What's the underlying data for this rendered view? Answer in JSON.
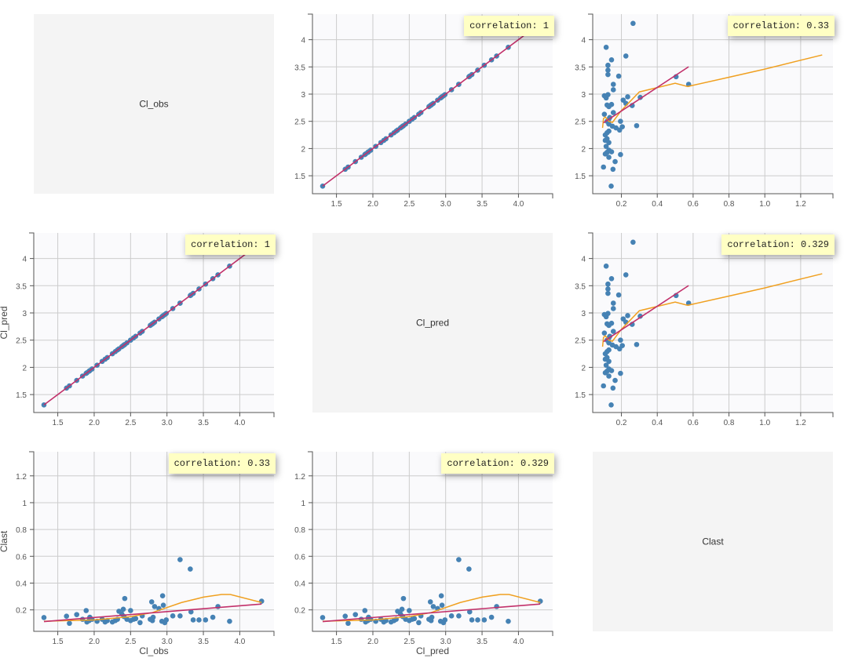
{
  "chart_data": {
    "type": "scatter",
    "layout": "scatter-matrix",
    "variables": [
      "Cl_obs",
      "Cl_pred",
      "Clast"
    ],
    "grid": true,
    "colors": {
      "points": "#4682b4",
      "regression": "#c2306a",
      "smooth": "#f0a020",
      "diagonal_bg": "#f4f4f4",
      "plot_bg": "#fafafc",
      "correlation_bg": "#ffffc4"
    },
    "axes": {
      "Cl_obs": {
        "range": [
          1.17,
          4.47
        ],
        "ticks": [
          1.5,
          2.0,
          2.5,
          3.0,
          3.5,
          4.0
        ],
        "x_tick_labels": [
          "1.5",
          "2.0",
          "2.5",
          "3.0",
          "3.5",
          "4.0"
        ],
        "y_tick_labels": [
          "1.5",
          "2",
          "2.5",
          "3",
          "3.5",
          "4"
        ]
      },
      "Cl_pred": {
        "range": [
          1.17,
          4.47
        ],
        "ticks": [
          1.5,
          2.0,
          2.5,
          3.0,
          3.5,
          4.0
        ],
        "x_tick_labels": [
          "1.5",
          "2.0",
          "2.5",
          "3.0",
          "3.5",
          "4.0"
        ],
        "y_tick_labels": [
          "1.5",
          "2",
          "2.5",
          "3",
          "3.5",
          "4"
        ]
      },
      "Clast": {
        "range": [
          0.04,
          1.38
        ],
        "ticks": [
          0.2,
          0.4,
          0.6,
          0.8,
          1.0,
          1.2
        ],
        "x_tick_labels": [
          "0.2",
          "0.4",
          "0.6",
          "0.8",
          "1.0",
          "1.2"
        ],
        "y_tick_labels": [
          "0.2",
          "0.4",
          "0.6",
          "0.8",
          "1",
          "1.2"
        ]
      }
    },
    "points": {
      "Cl_obs": [
        1.31,
        1.62,
        1.66,
        1.76,
        1.84,
        1.89,
        1.9,
        1.93,
        1.94,
        1.97,
        2.04,
        2.11,
        2.15,
        2.18,
        2.25,
        2.29,
        2.32,
        2.34,
        2.4,
        2.42,
        2.38,
        2.41,
        2.45,
        2.5,
        2.5,
        2.54,
        2.57,
        2.63,
        2.66,
        2.77,
        2.79,
        2.8,
        2.81,
        2.83,
        2.89,
        2.93,
        2.94,
        2.95,
        2.97,
        2.99,
        3.08,
        3.18,
        3.18,
        3.32,
        3.33,
        3.36,
        3.44,
        3.53,
        3.63,
        3.7,
        3.86,
        4.3
      ],
      "Cl_pred": [
        1.31,
        1.62,
        1.66,
        1.76,
        1.84,
        1.89,
        1.9,
        1.93,
        1.94,
        1.97,
        2.04,
        2.11,
        2.15,
        2.18,
        2.25,
        2.29,
        2.32,
        2.34,
        2.4,
        2.42,
        2.38,
        2.41,
        2.45,
        2.5,
        2.5,
        2.54,
        2.57,
        2.63,
        2.66,
        2.77,
        2.79,
        2.8,
        2.81,
        2.83,
        2.89,
        2.93,
        2.94,
        2.95,
        2.97,
        2.99,
        3.08,
        3.18,
        3.18,
        3.32,
        3.33,
        3.36,
        3.44,
        3.53,
        3.63,
        3.7,
        3.86,
        4.3
      ],
      "Clast": [
        0.143,
        0.153,
        0.1,
        0.165,
        0.13,
        0.195,
        0.11,
        0.12,
        0.145,
        0.13,
        0.115,
        0.13,
        0.11,
        0.12,
        0.11,
        0.12,
        0.13,
        0.19,
        0.205,
        0.285,
        0.17,
        0.15,
        0.13,
        0.195,
        0.12,
        0.13,
        0.135,
        0.105,
        0.155,
        0.13,
        0.26,
        0.12,
        0.145,
        0.225,
        0.21,
        0.115,
        0.305,
        0.235,
        0.105,
        0.125,
        0.155,
        0.155,
        0.575,
        0.505,
        0.185,
        0.125,
        0.125,
        0.125,
        0.145,
        0.225,
        0.115,
        0.265
      ]
    },
    "smooth": {
      "Cl_vs_Clast": {
        "x": [
          1.31,
          2.0,
          2.5,
          2.8,
          3.2,
          3.5,
          3.75,
          3.87,
          4.3
        ],
        "y": [
          0.115,
          0.125,
          0.15,
          0.18,
          0.255,
          0.295,
          0.315,
          0.315,
          0.255
        ]
      },
      "Clast_vs_Cl": {
        "x": [
          0.095,
          0.1,
          0.11,
          0.13,
          0.15,
          0.2,
          0.3,
          0.5,
          0.57,
          0.8,
          1.0,
          1.32
        ],
        "y": [
          2.38,
          2.55,
          2.58,
          2.5,
          2.48,
          2.7,
          3.04,
          3.2,
          3.14,
          3.31,
          3.46,
          3.72
        ]
      }
    },
    "panels": [
      {
        "row": 0,
        "col": 0,
        "diagonal": true,
        "label": "Cl_obs"
      },
      {
        "row": 0,
        "col": 1,
        "x": "Cl_pred",
        "y": "Cl_obs",
        "correlation": "correlation: 1"
      },
      {
        "row": 0,
        "col": 2,
        "x": "Clast",
        "y": "Cl_obs",
        "correlation": "correlation: 0.33",
        "smooth": "Clast_vs_Cl"
      },
      {
        "row": 1,
        "col": 0,
        "x": "Cl_obs",
        "y": "Cl_pred",
        "correlation": "correlation: 1",
        "ylabel": "Cl_pred"
      },
      {
        "row": 1,
        "col": 1,
        "diagonal": true,
        "label": "Cl_pred"
      },
      {
        "row": 1,
        "col": 2,
        "x": "Clast",
        "y": "Cl_pred",
        "correlation": "correlation: 0.329",
        "smooth": "Clast_vs_Cl"
      },
      {
        "row": 2,
        "col": 0,
        "x": "Cl_obs",
        "y": "Clast",
        "correlation": "correlation: 0.33",
        "smooth": "Cl_vs_Clast",
        "ylabel": "Clast",
        "xlabel": "Cl_obs"
      },
      {
        "row": 2,
        "col": 1,
        "x": "Cl_pred",
        "y": "Clast",
        "correlation": "correlation: 0.329",
        "smooth": "Cl_vs_Clast",
        "xlabel": "Cl_pred"
      },
      {
        "row": 2,
        "col": 2,
        "diagonal": true,
        "label": "Clast"
      }
    ]
  }
}
